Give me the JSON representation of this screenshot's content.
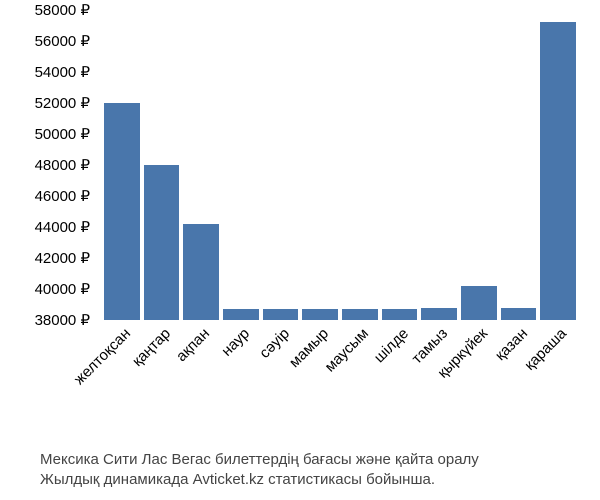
{
  "chart": {
    "type": "bar",
    "categories": [
      "желтоқсан",
      "қаңтар",
      "ақпан",
      "наур",
      "сәуір",
      "мамыр",
      "маусым",
      "шілде",
      "тамыз",
      "қыркүйек",
      "қазан",
      "қараша"
    ],
    "values": [
      52000,
      48000,
      44200,
      38700,
      38700,
      38700,
      38700,
      38700,
      38800,
      40200,
      38800,
      57200
    ],
    "bar_color": "#4976ab",
    "background_color": "#ffffff",
    "y_min": 38000,
    "y_max": 58000,
    "y_ticks": [
      38000,
      40000,
      42000,
      44000,
      46000,
      48000,
      50000,
      52000,
      54000,
      56000,
      58000
    ],
    "y_tick_suffix": " ₽",
    "label_fontsize": 15,
    "label_color": "#000000",
    "x_label_rotation": -45
  },
  "caption": {
    "line1": "Мексика Сити Лас Вегас билеттердің бағасы және қайта оралу",
    "line2": "Жылдық динамикада Avticket.kz статистикасы бойынша.",
    "fontsize": 15,
    "color": "#444444"
  }
}
